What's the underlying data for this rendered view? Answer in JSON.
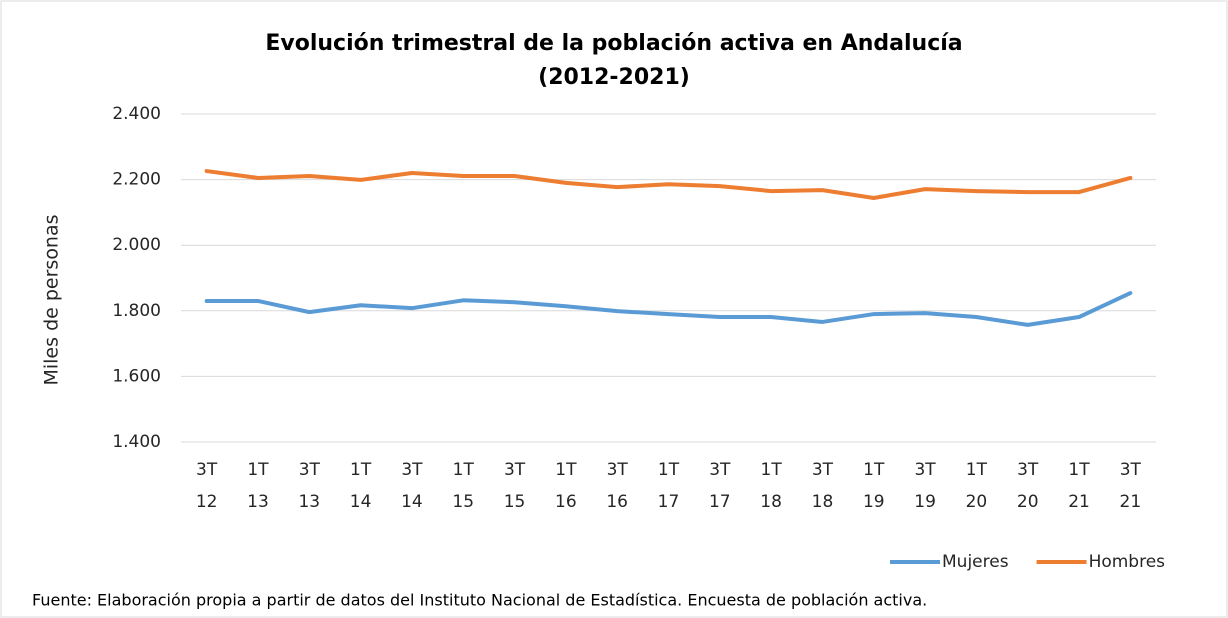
{
  "chart_data": {
    "type": "line",
    "title": [
      "Evolución trimestral de la población activa en Andalucía",
      "(2012-2021)"
    ],
    "y_label": "Miles de personas",
    "source": "Fuente: Elaboración propia a partir de datos del Instituto Nacional de Estadística. Encuesta de población activa.",
    "categories": [
      "3T 12",
      "1T 13",
      "3T 13",
      "1T 14",
      "3T 14",
      "1T 15",
      "3T 15",
      "1T 16",
      "3T 16",
      "1T 17",
      "3T 17",
      "1T 18",
      "3T 18",
      "1T 19",
      "3T 19",
      "1T 20",
      "3T 20",
      "1T 21",
      "3T 21"
    ],
    "series": [
      {
        "name": "Mujeres",
        "color": "#5b9bd5",
        "values": [
          1830,
          1830,
          1796,
          1817,
          1808,
          1832,
          1826,
          1814,
          1799,
          1790,
          1781,
          1781,
          1766,
          1790,
          1793,
          1781,
          1757,
          1781,
          1854
        ]
      },
      {
        "name": "Hombres",
        "color": "#ed7d31",
        "values": [
          2226,
          2205,
          2211,
          2199,
          2220,
          2211,
          2211,
          2190,
          2177,
          2186,
          2180,
          2165,
          2168,
          2144,
          2171,
          2165,
          2162,
          2162,
          2205
        ]
      }
    ],
    "ylim": [
      1400,
      2400
    ],
    "yticks": [
      {
        "value": 1400,
        "label": "1.400"
      },
      {
        "value": 1600,
        "label": "1.600"
      },
      {
        "value": 1800,
        "label": "1.800"
      },
      {
        "value": 2000,
        "label": "2.000"
      },
      {
        "value": 2200,
        "label": "2.200"
      },
      {
        "value": 2400,
        "label": "2.400"
      }
    ],
    "grid": true,
    "legend": "bottom-right"
  }
}
